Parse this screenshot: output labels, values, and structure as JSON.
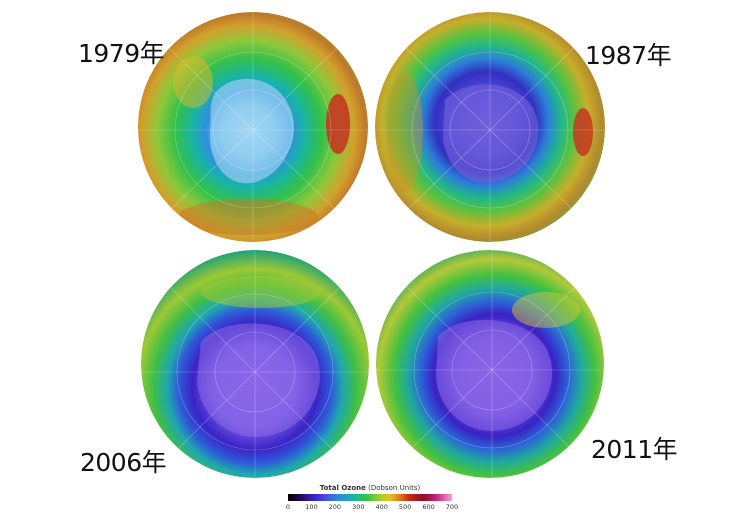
{
  "panels": [
    {
      "id": "1979",
      "label": "1979年",
      "hole": "small"
    },
    {
      "id": "1987",
      "label": "1987年",
      "hole": "medium"
    },
    {
      "id": "2006",
      "label": "2006年",
      "hole": "large"
    },
    {
      "id": "2011",
      "label": "2011年",
      "hole": "large"
    }
  ],
  "legend": {
    "title": "Total Ozone",
    "units": "(Dobson Units)",
    "ticks": [
      "0",
      "100",
      "200",
      "300",
      "400",
      "500",
      "600",
      "700"
    ]
  }
}
